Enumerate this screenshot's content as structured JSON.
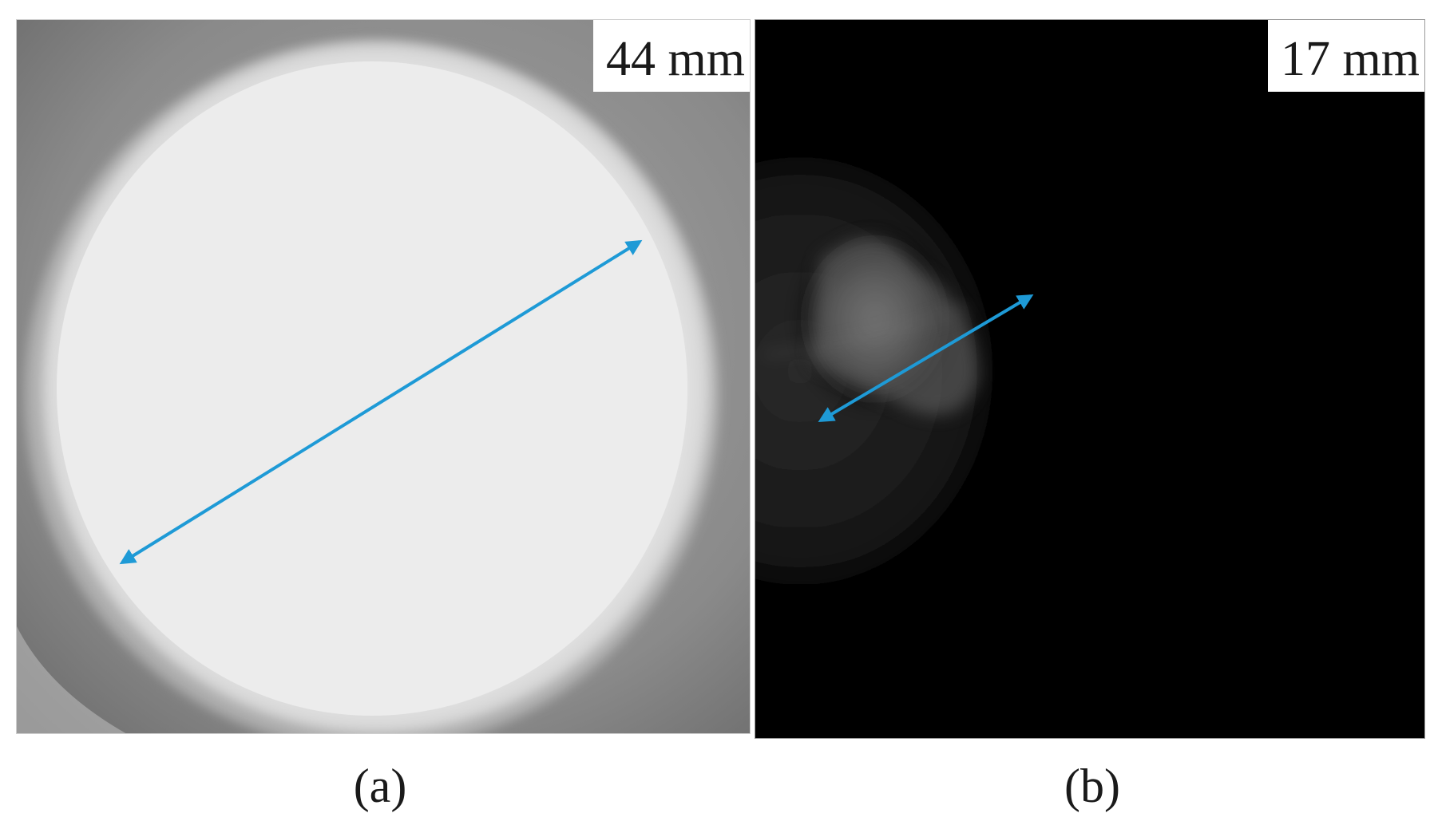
{
  "figure": {
    "panels": [
      {
        "id": "a",
        "scale_text": "44 mm",
        "caption": "(a)",
        "background_color": "#8f8f8f",
        "spot_color": "#ededed",
        "arrow_color": "#1e9ad6"
      },
      {
        "id": "b",
        "scale_text": "17 mm",
        "caption": "(b)",
        "background_color": "#000000",
        "spot_color": "#5a5a5a",
        "arrow_color": "#1e9ad6"
      }
    ]
  }
}
